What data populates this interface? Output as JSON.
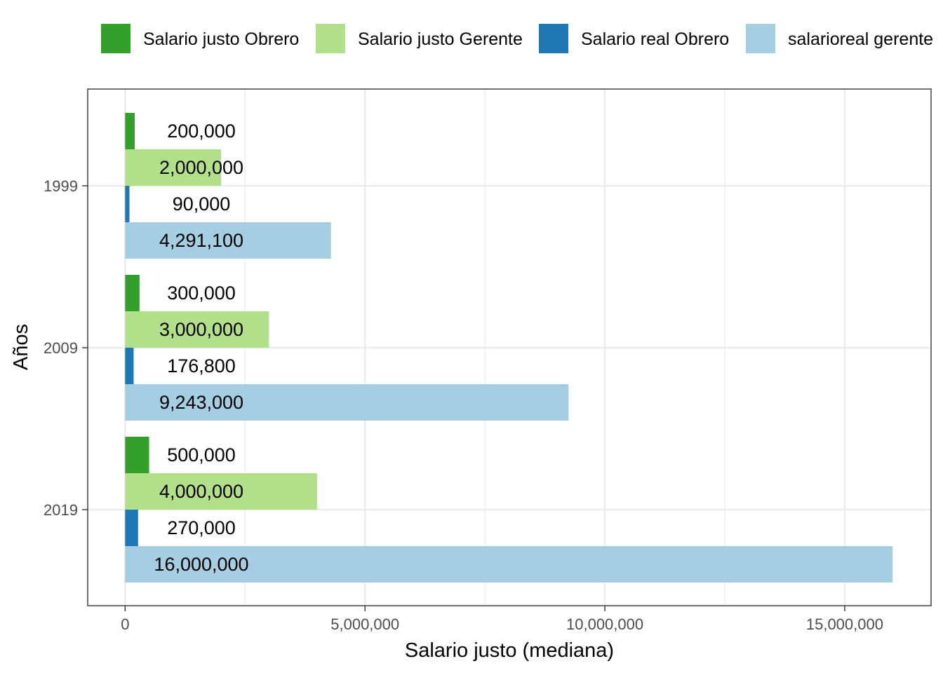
{
  "chart_data": {
    "type": "bar",
    "orientation": "horizontal",
    "categories": [
      "1999",
      "2009",
      "2019"
    ],
    "series": [
      {
        "name": "Salario justo Obrero",
        "color": "#33a02c",
        "values": [
          200000,
          300000,
          500000
        ],
        "labels": [
          "200,000",
          "300,000",
          "500,000"
        ]
      },
      {
        "name": "Salario justo Gerente",
        "color": "#b2df8a",
        "values": [
          2000000,
          3000000,
          4000000
        ],
        "labels": [
          "2,000,000",
          "3,000,000",
          "4,000,000"
        ]
      },
      {
        "name": "Salario real Obrero",
        "color": "#1f78b4",
        "values": [
          90000,
          176800,
          270000
        ],
        "labels": [
          "90,000",
          "176,800",
          "270,000"
        ]
      },
      {
        "name": "salarioreal gerente",
        "color": "#a6cee3",
        "values": [
          4291100,
          9243000,
          16000000
        ],
        "labels": [
          "4,291,100",
          "9,243,000",
          "16,000,000"
        ]
      }
    ],
    "xlabel": "Salario justo (mediana)",
    "ylabel": "Años",
    "xlim": [
      -780000,
      16800000
    ],
    "xticks": [
      0,
      5000000,
      10000000,
      15000000
    ],
    "xtick_labels": [
      "0",
      "5,000,000",
      "10,000,000",
      "15,000,000"
    ],
    "grid": true,
    "legend_position": "top"
  }
}
